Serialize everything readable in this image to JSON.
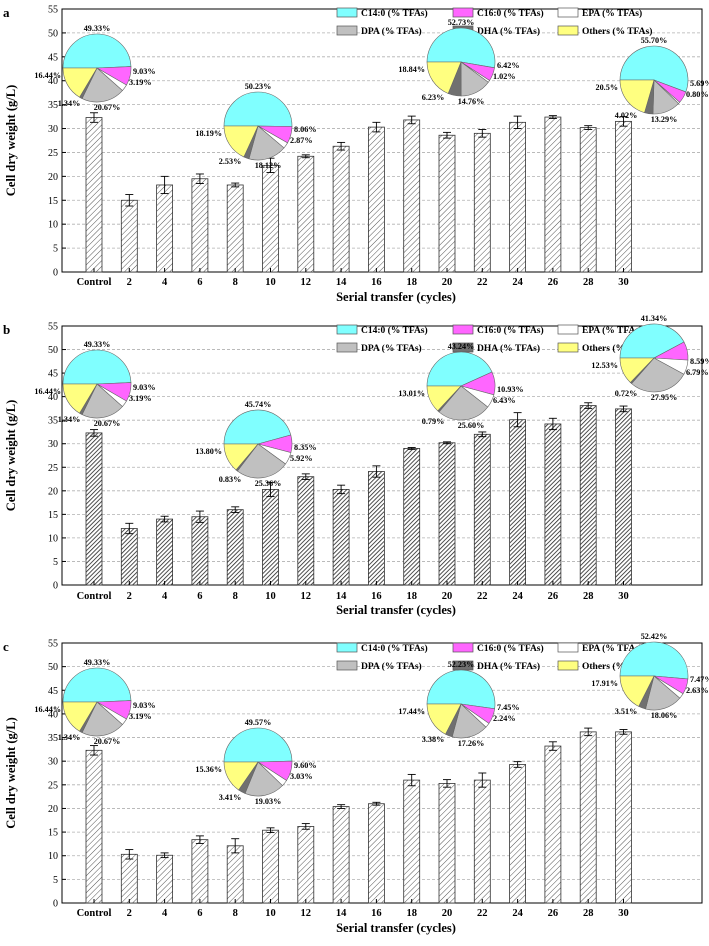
{
  "chart_data": [
    {
      "type": "bar",
      "panel_label": "a",
      "title": "",
      "xlabel": "Serial transfer (cycles)",
      "ylabel": "Cell dry weight (g/L)",
      "ylim": [
        0,
        55
      ],
      "yticks": [
        0,
        5,
        10,
        15,
        20,
        25,
        30,
        35,
        40,
        45,
        50,
        55
      ],
      "grid": true,
      "categories": [
        "Control",
        "2",
        "4",
        "6",
        "8",
        "10",
        "12",
        "14",
        "16",
        "18",
        "20",
        "22",
        "24",
        "26",
        "28",
        "30"
      ],
      "values": [
        32.3,
        15.0,
        18.2,
        19.5,
        18.2,
        22.3,
        24.2,
        26.3,
        30.3,
        31.8,
        28.6,
        29.0,
        31.3,
        32.4,
        30.2,
        31.5
      ],
      "errors": [
        1.0,
        1.2,
        1.8,
        1.0,
        0.4,
        1.5,
        0.3,
        0.8,
        1.0,
        0.8,
        0.6,
        0.8,
        1.3,
        0.3,
        0.4,
        1.0
      ],
      "bar_pattern": "light-hatch",
      "legend": {
        "placement": "top-right",
        "labels": [
          "C14:0 (% TFAs)",
          "C16:0 (% TFAs)",
          "EPA (% TFAs)",
          "DPA (% TFAs)",
          "DHA (% TFAs)",
          "Others (% TFAs)"
        ]
      },
      "pies": [
        {
          "cycle": "Control",
          "slices": [
            49.33,
            9.03,
            3.19,
            20.67,
            1.34,
            16.44
          ],
          "labels": [
            "49.33%",
            "9.03%",
            "3.19%",
            "20.67%",
            "1.34%",
            "16.44%"
          ]
        },
        {
          "cycle": "10",
          "slices": [
            50.23,
            8.06,
            2.87,
            18.12,
            2.53,
            18.19
          ],
          "labels": [
            "50.23%",
            "8.06%",
            "2.87%",
            "18.12%",
            "2.53%",
            "18.19%"
          ]
        },
        {
          "cycle": "20",
          "slices": [
            52.73,
            6.42,
            1.02,
            14.76,
            6.23,
            18.84
          ],
          "labels": [
            "52.73%",
            "6.42%",
            "1.02%",
            "14.76%",
            "6.23%",
            "18.84%"
          ]
        },
        {
          "cycle": "30",
          "slices": [
            55.7,
            5.69,
            0.8,
            13.29,
            4.02,
            20.5
          ],
          "labels": [
            "55.70%",
            "5.69%",
            "0.80%",
            "13.29%",
            "4.02%",
            "20.5%"
          ]
        }
      ]
    },
    {
      "type": "bar",
      "panel_label": "b",
      "title": "",
      "xlabel": "Serial transfer (cycles)",
      "ylabel": "Cell dry weight (g/L)",
      "ylim": [
        0,
        55
      ],
      "yticks": [
        0,
        5,
        10,
        15,
        20,
        25,
        30,
        35,
        40,
        45,
        50,
        55
      ],
      "grid": true,
      "categories": [
        "Control",
        "2",
        "4",
        "6",
        "8",
        "10",
        "12",
        "14",
        "16",
        "18",
        "20",
        "22",
        "24",
        "26",
        "28",
        "30"
      ],
      "values": [
        32.3,
        12.0,
        14.0,
        14.5,
        16.0,
        20.3,
        23.0,
        20.3,
        24.1,
        29.0,
        30.2,
        32.0,
        35.1,
        34.2,
        38.1,
        37.4
      ],
      "errors": [
        0.7,
        1.1,
        0.6,
        1.2,
        0.6,
        1.5,
        0.6,
        0.9,
        1.2,
        0.2,
        0.2,
        0.5,
        1.5,
        1.2,
        0.6,
        0.6
      ],
      "bar_pattern": "dark-hatch",
      "legend": {
        "placement": "top-right",
        "labels": [
          "C14:0 (% TFAs)",
          "C16:0 (% TFAs)",
          "EPA (% TFAs)",
          "DPA (% TFAs)",
          "DHA (% TFAs)",
          "Others (% TFAs)"
        ]
      },
      "pies": [
        {
          "cycle": "Control",
          "slices": [
            49.33,
            9.03,
            3.19,
            20.67,
            1.34,
            16.44
          ],
          "labels": [
            "49.33%",
            "9.03%",
            "3.19%",
            "20.67%",
            "1.34%",
            "16.44%"
          ]
        },
        {
          "cycle": "10",
          "slices": [
            45.74,
            8.35,
            5.92,
            25.36,
            0.83,
            13.8
          ],
          "labels": [
            "45.74%",
            "8.35%",
            "5.92%",
            "25.36%",
            "0.83%",
            "13.80%"
          ]
        },
        {
          "cycle": "20",
          "slices": [
            43.24,
            10.93,
            6.43,
            25.6,
            0.79,
            13.01
          ],
          "labels": [
            "43.24%",
            "10.93%",
            "6.43%",
            "25.60%",
            "0.79%",
            "13.01%"
          ]
        },
        {
          "cycle": "30",
          "slices": [
            41.34,
            8.59,
            6.79,
            27.95,
            0.72,
            12.53
          ],
          "labels": [
            "41.34%",
            "8.59%",
            "6.79%",
            "27.95%",
            "0.72%",
            "12.53%"
          ]
        }
      ]
    },
    {
      "type": "bar",
      "panel_label": "c",
      "title": "",
      "xlabel": "Serial transfer (cycles)",
      "ylabel": "Cell dry weight (g/L)",
      "ylim": [
        0,
        55
      ],
      "yticks": [
        0,
        5,
        10,
        15,
        20,
        25,
        30,
        35,
        40,
        45,
        50,
        55
      ],
      "grid": true,
      "categories": [
        "Control",
        "2",
        "4",
        "6",
        "8",
        "10",
        "12",
        "14",
        "16",
        "18",
        "20",
        "22",
        "24",
        "26",
        "28",
        "30"
      ],
      "values": [
        32.3,
        10.3,
        10.1,
        13.4,
        12.1,
        15.4,
        16.2,
        20.4,
        21.0,
        26.0,
        25.3,
        26.0,
        29.3,
        33.2,
        36.2,
        36.2
      ],
      "errors": [
        1.0,
        1.0,
        0.5,
        0.8,
        1.5,
        0.5,
        0.6,
        0.4,
        0.3,
        1.2,
        0.8,
        1.5,
        0.6,
        0.9,
        0.8,
        0.5
      ],
      "bar_pattern": "light-hatch",
      "legend": {
        "placement": "top-right",
        "labels": [
          "C14:0 (% TFAs)",
          "C16:0 (% TFAs)",
          "EPA (% TFAs)",
          "DPA (% TFAs)",
          "DHA (% TFAs)",
          "Others (% TFAs)"
        ]
      },
      "pies": [
        {
          "cycle": "Control",
          "slices": [
            49.33,
            9.03,
            3.19,
            20.67,
            1.34,
            16.44
          ],
          "labels": [
            "49.33%",
            "9.03%",
            "3.19%",
            "20.67%",
            "1.34%",
            "16.44%"
          ]
        },
        {
          "cycle": "10",
          "slices": [
            49.57,
            9.6,
            3.03,
            19.03,
            3.41,
            15.36
          ],
          "labels": [
            "49.57%",
            "9.60%",
            "3.03%",
            "19.03%",
            "3.41%",
            "15.36%"
          ]
        },
        {
          "cycle": "20",
          "slices": [
            52.23,
            7.45,
            2.24,
            17.26,
            3.38,
            17.44
          ],
          "labels": [
            "52.23%",
            "7.45%",
            "2.24%",
            "17.26%",
            "3.38%",
            "17.44%"
          ]
        },
        {
          "cycle": "30",
          "slices": [
            52.42,
            7.47,
            2.63,
            18.06,
            3.51,
            17.91
          ],
          "labels": [
            "52.42%",
            "7.47%",
            "2.63%",
            "18.06%",
            "3.51%",
            "17.91%"
          ]
        }
      ]
    }
  ],
  "pie_slice_order": [
    "DHA",
    "Others",
    "C14:0",
    "C16:0",
    "EPA",
    "DPA"
  ],
  "colors": {
    "C14:0": "#ffffff",
    "C16:0": "#c0c0c0",
    "EPA": "#707070",
    "DPA": "#ffff80",
    "DHA": "#80ffff",
    "Others": "#ff66ff",
    "bar_light": "#ffffff",
    "grid": "#b0b0b0",
    "axis": "#000000"
  }
}
